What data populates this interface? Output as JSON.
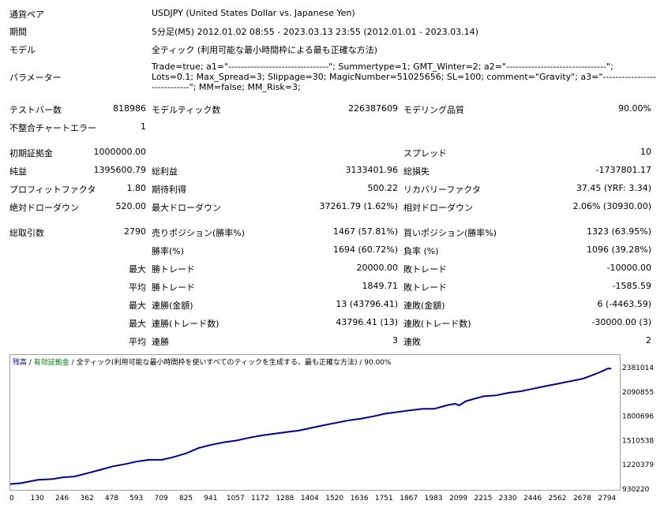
{
  "header": {
    "symbol": {
      "label": "通貨ペア",
      "value": "USDJPY (United States Dollar vs. Japanese Yen)"
    },
    "period": {
      "label": "期間",
      "value": "5分足(M5) 2012.01.02 08:55 - 2023.03.13 23:55 (2012.01.01 - 2023.03.14)"
    },
    "model": {
      "label": "モデル",
      "value": "全ティック (利用可能な最小時間枠による最も正確な方法)"
    },
    "params": {
      "label": "パラメーター",
      "value": "Trade=true; a1=\"--------------------------------\"; Summertype=1; GMT_Winter=2; a2=\"--------------------------------\"; Lots=0.1; Max_Spread=3; Slippage=30; MagicNumber=51025656; SL=100; comment=\"Gravity\"; a3=\"-----------------------------\"; MM=false; MM_Risk=3;"
    }
  },
  "stats": {
    "bars": {
      "label": "テストバー数",
      "value": "818986"
    },
    "ticks": {
      "label": "モデルティック数",
      "value": "226387609"
    },
    "quality": {
      "label": "モデリング品質",
      "value": "90.00%"
    },
    "mismatch": {
      "label": "不整合チャートエラー",
      "value": "1"
    },
    "deposit": {
      "label": "初期証拠金",
      "value": "1000000.00"
    },
    "spread": {
      "label": "スプレッド",
      "value": "10"
    },
    "net_profit": {
      "label": "純益",
      "value": "1395600.79"
    },
    "gross_profit": {
      "label": "総利益",
      "value": "3133401.96"
    },
    "gross_loss": {
      "label": "総損失",
      "value": "-1737801.17"
    },
    "profit_factor": {
      "label": "プロフィットファクタ",
      "value": "1.80"
    },
    "expected_payoff": {
      "label": "期待利得",
      "value": "500.22"
    },
    "recovery_factor": {
      "label": "リカバリーファクタ",
      "value": "37.45 (YRF: 3.34)"
    },
    "abs_drawdown": {
      "label": "絶対ドローダウン",
      "value": "520.00"
    },
    "max_drawdown": {
      "label": "最大ドローダウン",
      "value": "37261.79 (1.62%)"
    },
    "rel_drawdown": {
      "label": "相対ドローダウン",
      "value": "2.06% (30930.00)"
    },
    "total_trades": {
      "label": "総取引数",
      "value": "2790"
    },
    "short_positions": {
      "label": "売りポジション(勝率%)",
      "value": "1467 (57.81%)"
    },
    "long_positions": {
      "label": "買いポジション(勝率%)",
      "value": "1323 (63.95%)"
    },
    "win_rate": {
      "label": "勝率(%)",
      "value": "1694 (60.72%)"
    },
    "loss_rate": {
      "label": "負率 (%)",
      "value": "1096 (39.28%)"
    },
    "largest_win": {
      "prefix": "最大",
      "label": "勝トレード",
      "value": "20000.00"
    },
    "largest_loss": {
      "label": "敗トレード",
      "value": "-10000.00"
    },
    "avg_win": {
      "prefix": "平均",
      "label": "勝トレード",
      "value": "1849.71"
    },
    "avg_loss": {
      "label": "敗トレード",
      "value": "-1585.59"
    },
    "max_consec_wins": {
      "prefix": "最大",
      "label": "連勝(金額)",
      "value": "13 (43796.41)"
    },
    "max_consec_losses": {
      "label": "連敗(金額)",
      "value": "6 (-4463.59)"
    },
    "max_consec_profit": {
      "prefix": "最大",
      "label": "連勝(トレード数)",
      "value": "43796.41 (13)"
    },
    "max_consec_loss": {
      "label": "連敗(トレード数)",
      "value": "-30000.00 (3)"
    },
    "avg_consec_wins": {
      "prefix": "平均",
      "label": "連勝",
      "value": "3"
    },
    "avg_consec_losses": {
      "label": "連敗",
      "value": "2"
    }
  },
  "chart_data": {
    "type": "line",
    "legend": {
      "balance": "残高",
      "sep1": " / ",
      "equity": "有効証拠金",
      "sep2": " / ",
      "model": "全ティック(利用可能な最小時間枠を使いすべてのティックを生成する、最も正確な方法) / 90.00%"
    },
    "colors": {
      "balance": "#00008b",
      "equity": "#008000"
    },
    "x_ticks": [
      "0",
      "130",
      "246",
      "362",
      "478",
      "593",
      "709",
      "825",
      "941",
      "1057",
      "1172",
      "1288",
      "1404",
      "1520",
      "1636",
      "1751",
      "1867",
      "1983",
      "2099",
      "2215",
      "2330",
      "2446",
      "2562",
      "2678",
      "2794"
    ],
    "x_tick_values": [
      0,
      130,
      246,
      362,
      478,
      593,
      709,
      825,
      941,
      1057,
      1172,
      1288,
      1404,
      1520,
      1636,
      1751,
      1867,
      1983,
      2099,
      2215,
      2330,
      2446,
      2562,
      2678,
      2794
    ],
    "y_ticks": [
      "2381014",
      "2090855",
      "1800696",
      "1510538",
      "1220379",
      "930220"
    ],
    "y_tick_values": [
      2381014,
      2090855,
      1800696,
      1510538,
      1220379,
      930220
    ],
    "xlim": [
      0,
      2850
    ],
    "ylim": [
      930220,
      2430000
    ],
    "series": [
      {
        "name": "残高",
        "x": [
          0,
          50,
          130,
          200,
          246,
          300,
          362,
          420,
          478,
          540,
          593,
          650,
          709,
          760,
          825,
          880,
          941,
          1000,
          1057,
          1110,
          1172,
          1230,
          1288,
          1350,
          1404,
          1460,
          1520,
          1580,
          1636,
          1700,
          1751,
          1810,
          1867,
          1930,
          1983,
          2040,
          2080,
          2099,
          2130,
          2170,
          2215,
          2270,
          2330,
          2390,
          2446,
          2500,
          2562,
          2620,
          2678,
          2720,
          2760,
          2794,
          2810
        ],
        "y": [
          1000000,
          1010000,
          1050000,
          1060000,
          1080000,
          1090000,
          1130000,
          1170000,
          1210000,
          1240000,
          1270000,
          1290000,
          1290000,
          1320000,
          1370000,
          1430000,
          1470000,
          1500000,
          1520000,
          1550000,
          1580000,
          1600000,
          1620000,
          1640000,
          1670000,
          1700000,
          1730000,
          1760000,
          1780000,
          1810000,
          1840000,
          1860000,
          1880000,
          1900000,
          1900000,
          1940000,
          1960000,
          1940000,
          1990000,
          2020000,
          2050000,
          2060000,
          2090000,
          2110000,
          2140000,
          2170000,
          2200000,
          2230000,
          2260000,
          2300000,
          2340000,
          2381014,
          2380000
        ]
      }
    ]
  }
}
